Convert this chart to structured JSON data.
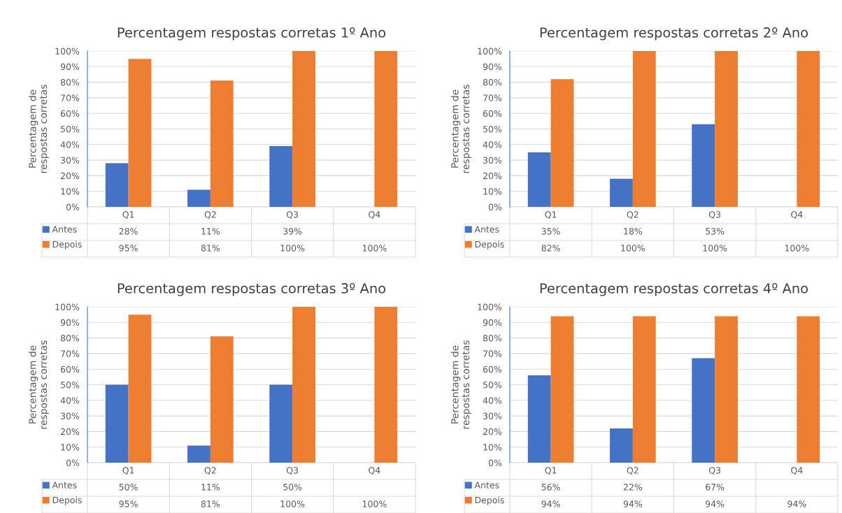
{
  "chart_data": [
    {
      "type": "bar",
      "title": "Percentagem respostas corretas 1º Ano",
      "ylabel": "Percentagem de\nrespostas corretas",
      "categories": [
        "Q1",
        "Q2",
        "Q3",
        "Q4"
      ],
      "series": [
        {
          "name": "Antes",
          "color": "#4472c4",
          "values": [
            28,
            11,
            39,
            null
          ],
          "value_labels": [
            "28%",
            "11%",
            "39%",
            null
          ]
        },
        {
          "name": "Depois",
          "color": "#ed7d31",
          "values": [
            95,
            81,
            100,
            100
          ],
          "value_labels": [
            "95%",
            "81%",
            "100%",
            "100%"
          ]
        }
      ],
      "ylim": [
        0,
        100
      ],
      "yticks": [
        {
          "value": 0,
          "label": "0%"
        },
        {
          "value": 10,
          "label": "10%"
        },
        {
          "value": 20,
          "label": "20%"
        },
        {
          "value": 30,
          "label": "30%"
        },
        {
          "value": 40,
          "label": "40%"
        },
        {
          "value": 50,
          "label": "50%"
        },
        {
          "value": 60,
          "label": "60%"
        },
        {
          "value": 70,
          "label": "70%"
        },
        {
          "value": 80,
          "label": "80%"
        },
        {
          "value": 90,
          "label": "90%"
        },
        {
          "value": 100,
          "label": "100%"
        }
      ],
      "grid": "y",
      "legend": "bottom"
    },
    {
      "type": "bar",
      "title": "Percentagem respostas corretas 2º Ano",
      "ylabel": "Percentagem de\nrespostas corretas",
      "categories": [
        "Q1",
        "Q2",
        "Q3",
        "Q4"
      ],
      "series": [
        {
          "name": "Antes",
          "color": "#4472c4",
          "values": [
            35,
            18,
            53,
            null
          ],
          "value_labels": [
            "35%",
            "18%",
            "53%",
            null
          ]
        },
        {
          "name": "Depois",
          "color": "#ed7d31",
          "values": [
            82,
            100,
            100,
            100
          ],
          "value_labels": [
            "82%",
            "100%",
            "100%",
            "100%"
          ]
        }
      ],
      "ylim": [
        0,
        100
      ],
      "yticks": [
        {
          "value": 0,
          "label": "0%"
        },
        {
          "value": 10,
          "label": "10%"
        },
        {
          "value": 20,
          "label": "20%"
        },
        {
          "value": 30,
          "label": "30%"
        },
        {
          "value": 40,
          "label": "40%"
        },
        {
          "value": 50,
          "label": "50%"
        },
        {
          "value": 60,
          "label": "60%"
        },
        {
          "value": 70,
          "label": "70%"
        },
        {
          "value": 80,
          "label": "80%"
        },
        {
          "value": 90,
          "label": "90%"
        },
        {
          "value": 100,
          "label": "100%"
        }
      ],
      "grid": "y",
      "legend": "bottom"
    },
    {
      "type": "bar",
      "title": "Percentagem respostas corretas 3º Ano",
      "ylabel": "Percentagem de\nrespostas corretas",
      "categories": [
        "Q1",
        "Q2",
        "Q3",
        "Q4"
      ],
      "series": [
        {
          "name": "Antes",
          "color": "#4472c4",
          "values": [
            50,
            11,
            50,
            null
          ],
          "value_labels": [
            "50%",
            "11%",
            "50%",
            null
          ]
        },
        {
          "name": "Depois",
          "color": "#ed7d31",
          "values": [
            95,
            81,
            100,
            100
          ],
          "value_labels": [
            "95%",
            "81%",
            "100%",
            "100%"
          ]
        }
      ],
      "ylim": [
        0,
        100
      ],
      "yticks": [
        {
          "value": 0,
          "label": "0%"
        },
        {
          "value": 10,
          "label": "10%"
        },
        {
          "value": 20,
          "label": "20%"
        },
        {
          "value": 30,
          "label": "30%"
        },
        {
          "value": 40,
          "label": "40%"
        },
        {
          "value": 50,
          "label": "50%"
        },
        {
          "value": 60,
          "label": "60%"
        },
        {
          "value": 70,
          "label": "70%"
        },
        {
          "value": 80,
          "label": "80%"
        },
        {
          "value": 90,
          "label": "90%"
        },
        {
          "value": 100,
          "label": "100%"
        }
      ],
      "grid": "y",
      "legend": "bottom"
    },
    {
      "type": "bar",
      "title": "Percentagem respostas corretas 4º Ano",
      "ylabel": "Percentagem de\nrespostas corretas",
      "categories": [
        "Q1",
        "Q2",
        "Q3",
        "Q4"
      ],
      "series": [
        {
          "name": "Antes",
          "color": "#4472c4",
          "values": [
            56,
            22,
            67,
            null
          ],
          "value_labels": [
            "56%",
            "22%",
            "67%",
            null
          ]
        },
        {
          "name": "Depois",
          "color": "#ed7d31",
          "values": [
            94,
            94,
            94,
            94
          ],
          "value_labels": [
            "94%",
            "94%",
            "94%",
            "94%"
          ]
        }
      ],
      "ylim": [
        0,
        100
      ],
      "yticks": [
        {
          "value": 0,
          "label": "0%"
        },
        {
          "value": 10,
          "label": "10%"
        },
        {
          "value": 20,
          "label": "20%"
        },
        {
          "value": 30,
          "label": "30%"
        },
        {
          "value": 40,
          "label": "40%"
        },
        {
          "value": 50,
          "label": "50%"
        },
        {
          "value": 60,
          "label": "60%"
        },
        {
          "value": 70,
          "label": "70%"
        },
        {
          "value": 80,
          "label": "80%"
        },
        {
          "value": 90,
          "label": "90%"
        },
        {
          "value": 100,
          "label": "100%"
        }
      ],
      "grid": "y",
      "legend": "bottom"
    }
  ]
}
